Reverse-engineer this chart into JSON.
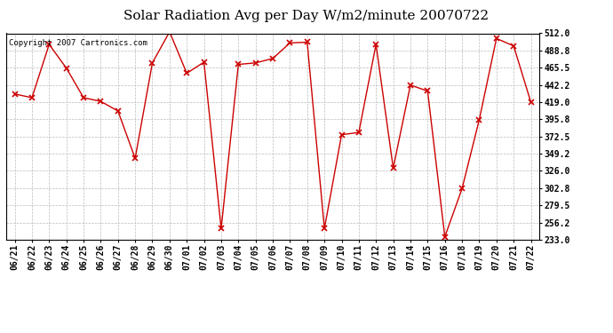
{
  "title": "Solar Radiation Avg per Day W/m2/minute 20070722",
  "copyright": "Copyright 2007 Cartronics.com",
  "labels": [
    "06/21",
    "06/22",
    "06/23",
    "06/24",
    "06/25",
    "06/26",
    "06/27",
    "06/28",
    "06/29",
    "06/30",
    "07/01",
    "07/02",
    "07/03",
    "07/04",
    "07/05",
    "07/06",
    "07/07",
    "07/08",
    "07/09",
    "07/10",
    "07/11",
    "07/12",
    "07/13",
    "07/14",
    "07/15",
    "07/16",
    "07/18",
    "07/19",
    "07/20",
    "07/21",
    "07/22"
  ],
  "values": [
    430,
    425,
    497,
    465,
    425,
    420,
    407,
    343,
    472,
    514,
    458,
    473,
    248,
    470,
    472,
    478,
    499,
    500,
    248,
    375,
    378,
    497,
    330,
    442,
    434,
    237,
    302,
    395,
    505,
    495,
    419
  ],
  "y_min": 233.0,
  "y_max": 512.0,
  "y_ticks": [
    233.0,
    256.2,
    279.5,
    302.8,
    326.0,
    349.2,
    372.5,
    395.8,
    419.0,
    442.2,
    465.5,
    488.8,
    512.0
  ],
  "line_color": "#cc0000",
  "marker": "x",
  "marker_size": 4,
  "bg_color": "#ffffff",
  "grid_color": "#bbbbbb",
  "title_fontsize": 11,
  "tick_fontsize": 7,
  "copyright_fontsize": 6.5
}
